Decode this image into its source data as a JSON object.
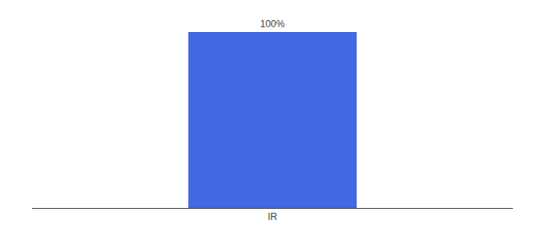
{
  "chart_data": {
    "type": "bar",
    "categories": [
      "IR"
    ],
    "values": [
      100
    ],
    "value_labels": [
      "100%"
    ],
    "color": "#4169e1",
    "ylim": [
      0,
      100
    ],
    "data_labels": true,
    "tick_labels": "x",
    "grid": false
  }
}
